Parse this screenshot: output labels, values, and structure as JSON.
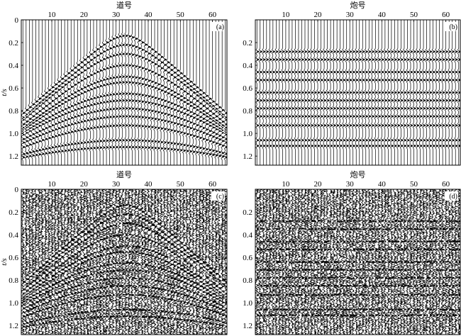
{
  "chart_data": [
    {
      "type": "seismic-wiggle",
      "panel_label": "(a)",
      "xlabel": "道号",
      "ylabel": "t/s",
      "x_ticks": [
        10,
        20,
        30,
        40,
        50,
        60
      ],
      "y_ticks": [
        "0",
        "0.2",
        "0.4",
        "0.6",
        "0.8",
        "1.0",
        "1.2"
      ],
      "xlim": [
        1,
        64
      ],
      "ylim": [
        0,
        1.28
      ],
      "y_inverted": true,
      "traces": 64,
      "noise": false,
      "events": [
        {
          "shape": "hyperbolic",
          "apex_trace": 32.5,
          "t0": 0.14,
          "t_edge": 0.82
        },
        {
          "shape": "hyperbolic",
          "apex_trace": 32.5,
          "t0": 0.22,
          "t_edge": 0.86
        },
        {
          "shape": "hyperbolic",
          "apex_trace": 32.5,
          "t0": 0.3,
          "t_edge": 0.88
        },
        {
          "shape": "hyperbolic",
          "apex_trace": 32.5,
          "t0": 0.4,
          "t_edge": 0.92
        },
        {
          "shape": "hyperbolic",
          "apex_trace": 32.5,
          "t0": 0.5,
          "t_edge": 0.95
        },
        {
          "shape": "hyperbolic",
          "apex_trace": 32.5,
          "t0": 0.55,
          "t_edge": 0.97
        },
        {
          "shape": "hyperbolic",
          "apex_trace": 32.5,
          "t0": 0.65,
          "t_edge": 0.99
        },
        {
          "shape": "hyperbolic",
          "apex_trace": 32.5,
          "t0": 0.71,
          "t_edge": 1.01
        },
        {
          "shape": "hyperbolic",
          "apex_trace": 32.5,
          "t0": 0.78,
          "t_edge": 1.05
        },
        {
          "shape": "hyperbolic",
          "apex_trace": 32.5,
          "t0": 0.85,
          "t_edge": 1.08
        },
        {
          "shape": "hyperbolic",
          "apex_trace": 32.5,
          "t0": 0.93,
          "t_edge": 1.12
        },
        {
          "shape": "hyperbolic",
          "apex_trace": 32.5,
          "t0": 1.06,
          "t_edge": 1.18
        },
        {
          "shape": "hyperbolic",
          "apex_trace": 32.5,
          "t0": 1.12,
          "t_edge": 1.21
        }
      ]
    },
    {
      "type": "seismic-wiggle",
      "panel_label": "(b)",
      "xlabel": "炮号",
      "ylabel": "",
      "x_ticks": [
        10,
        20,
        30,
        40,
        50,
        60
      ],
      "y_ticks": [
        "0.2",
        "0.4",
        "0.6",
        "0.8",
        "1.0",
        "1.2"
      ],
      "xlim": [
        1,
        64
      ],
      "ylim": [
        0,
        1.28
      ],
      "y_inverted": true,
      "traces": 64,
      "noise": false,
      "events": [
        {
          "shape": "flat",
          "t0": 0.28
        },
        {
          "shape": "flat",
          "t0": 0.35
        },
        {
          "shape": "flat",
          "t0": 0.46
        },
        {
          "shape": "flat",
          "t0": 0.53
        },
        {
          "shape": "flat",
          "t0": 0.64
        },
        {
          "shape": "flat",
          "t0": 0.71
        },
        {
          "shape": "flat",
          "t0": 0.78
        },
        {
          "shape": "flat",
          "t0": 0.85
        },
        {
          "shape": "flat",
          "t0": 0.93
        },
        {
          "shape": "flat",
          "t0": 1.06
        },
        {
          "shape": "flat",
          "t0": 1.11
        }
      ]
    },
    {
      "type": "seismic-wiggle",
      "panel_label": "(c)",
      "xlabel": "道号",
      "ylabel": "t/s",
      "x_ticks": [
        10,
        20,
        30,
        40,
        50,
        60
      ],
      "y_ticks": [
        "0",
        "0.2",
        "0.4",
        "0.6",
        "0.8",
        "1.0",
        "1.2"
      ],
      "xlim": [
        1,
        64
      ],
      "ylim": [
        0,
        1.28
      ],
      "y_inverted": true,
      "traces": 64,
      "noise": true,
      "events": [
        {
          "shape": "hyperbolic",
          "apex_trace": 32.5,
          "t0": 0.14,
          "t_edge": 0.82
        },
        {
          "shape": "hyperbolic",
          "apex_trace": 32.5,
          "t0": 0.22,
          "t_edge": 0.86
        },
        {
          "shape": "hyperbolic",
          "apex_trace": 32.5,
          "t0": 0.3,
          "t_edge": 0.88
        },
        {
          "shape": "hyperbolic",
          "apex_trace": 32.5,
          "t0": 0.4,
          "t_edge": 0.92
        },
        {
          "shape": "hyperbolic",
          "apex_trace": 32.5,
          "t0": 0.5,
          "t_edge": 0.95
        },
        {
          "shape": "hyperbolic",
          "apex_trace": 32.5,
          "t0": 0.55,
          "t_edge": 0.97
        },
        {
          "shape": "hyperbolic",
          "apex_trace": 32.5,
          "t0": 0.65,
          "t_edge": 0.99
        },
        {
          "shape": "hyperbolic",
          "apex_trace": 32.5,
          "t0": 0.71,
          "t_edge": 1.01
        },
        {
          "shape": "hyperbolic",
          "apex_trace": 32.5,
          "t0": 0.78,
          "t_edge": 1.05
        },
        {
          "shape": "hyperbolic",
          "apex_trace": 32.5,
          "t0": 0.85,
          "t_edge": 1.08
        },
        {
          "shape": "hyperbolic",
          "apex_trace": 32.5,
          "t0": 0.93,
          "t_edge": 1.12
        },
        {
          "shape": "hyperbolic",
          "apex_trace": 32.5,
          "t0": 1.06,
          "t_edge": 1.18
        },
        {
          "shape": "hyperbolic",
          "apex_trace": 32.5,
          "t0": 1.12,
          "t_edge": 1.21
        }
      ]
    },
    {
      "type": "seismic-wiggle",
      "panel_label": "(d)",
      "xlabel": "炮号",
      "ylabel": "",
      "x_ticks": [
        10,
        20,
        30,
        40,
        50,
        60
      ],
      "y_ticks": [
        "0.2",
        "0.4",
        "0.6",
        "0.8",
        "1.0",
        "1.2"
      ],
      "xlim": [
        1,
        64
      ],
      "ylim": [
        0,
        1.28
      ],
      "y_inverted": true,
      "traces": 64,
      "noise": true,
      "events": [
        {
          "shape": "flat",
          "t0": 0.28
        },
        {
          "shape": "flat",
          "t0": 0.35
        },
        {
          "shape": "flat",
          "t0": 0.46
        },
        {
          "shape": "flat",
          "t0": 0.53
        },
        {
          "shape": "flat",
          "t0": 0.64
        },
        {
          "shape": "flat",
          "t0": 0.71
        },
        {
          "shape": "flat",
          "t0": 0.78
        },
        {
          "shape": "flat",
          "t0": 0.85
        },
        {
          "shape": "flat",
          "t0": 0.93
        },
        {
          "shape": "flat",
          "t0": 1.06
        },
        {
          "shape": "flat",
          "t0": 1.11
        }
      ]
    }
  ]
}
